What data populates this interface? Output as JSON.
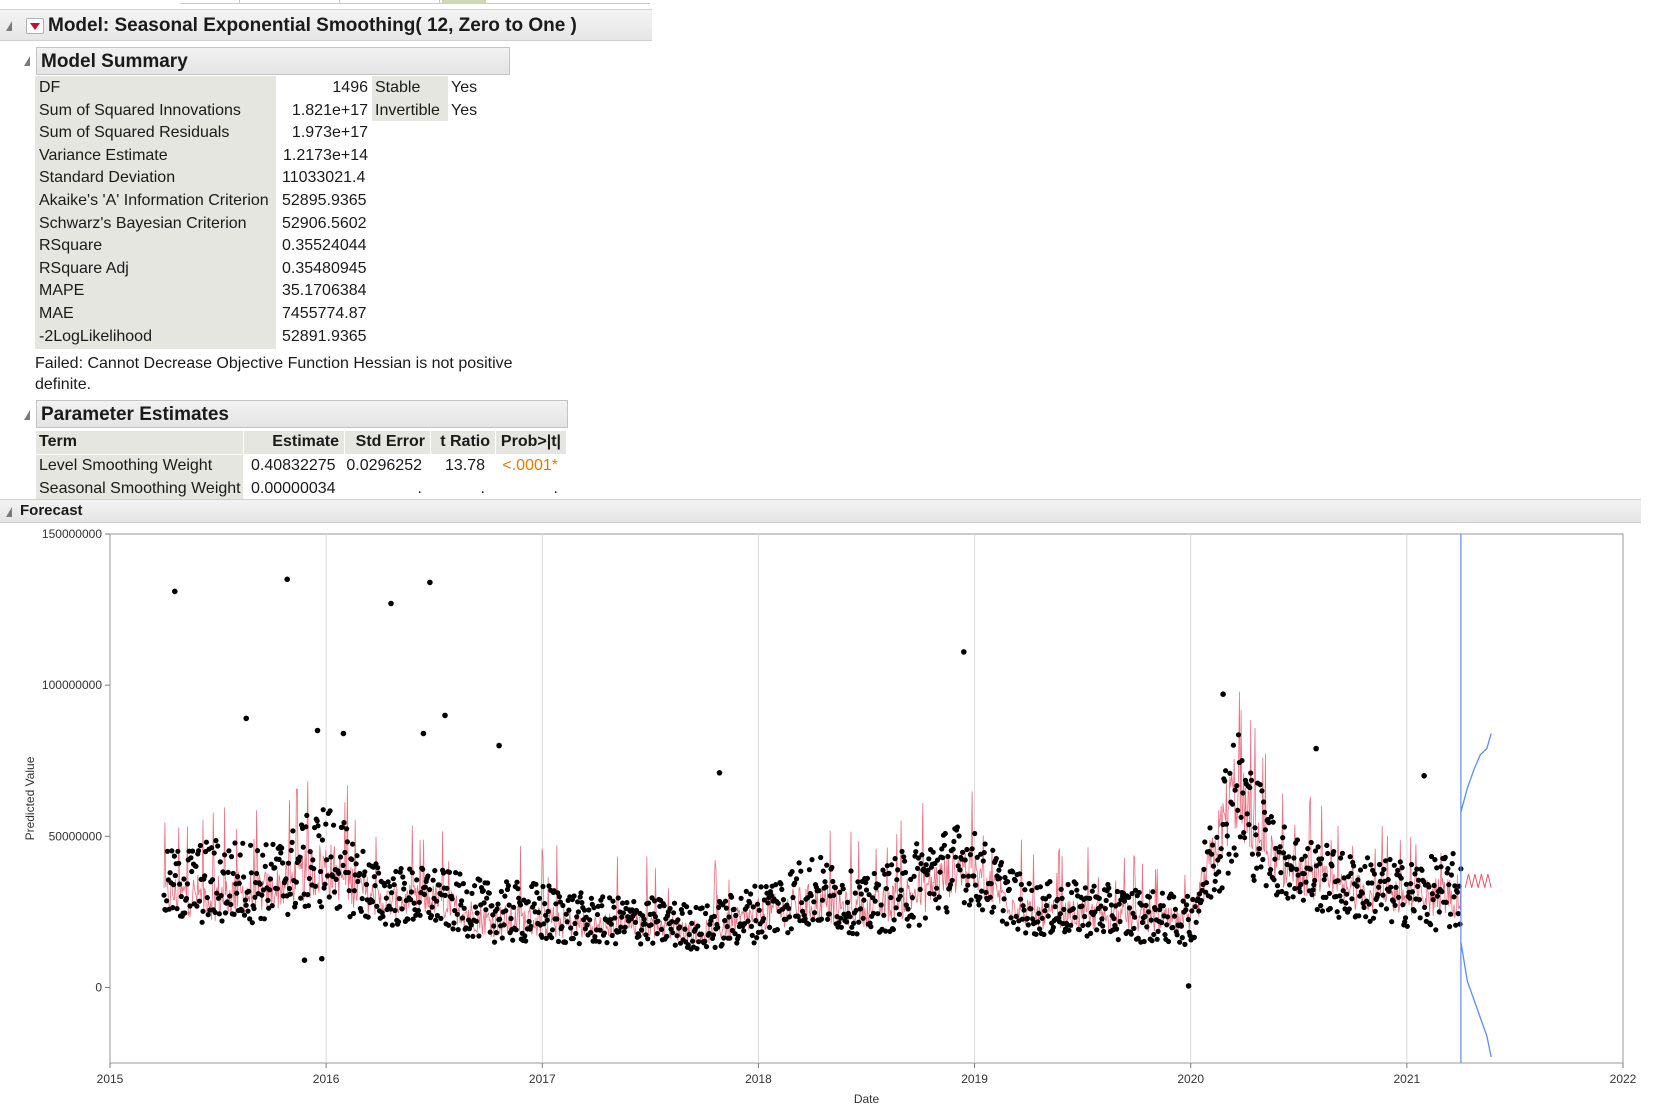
{
  "model": {
    "title": "Model: Seasonal Exponential Smoothing( 12, Zero to One )"
  },
  "model_summary": {
    "title": "Model Summary",
    "rows": [
      {
        "label": "DF",
        "value": "1496"
      },
      {
        "label": "Sum of Squared Innovations",
        "value": "1.821e+17"
      },
      {
        "label": "Sum of Squared Residuals",
        "value": "1.973e+17"
      },
      {
        "label": "Variance Estimate",
        "value": "1.2173e+14"
      },
      {
        "label": "Standard Deviation",
        "value": "11033021.4"
      },
      {
        "label": "Akaike's 'A' Information Criterion",
        "value": "52895.9365"
      },
      {
        "label": "Schwarz's Bayesian Criterion",
        "value": "52906.5602"
      },
      {
        "label": "RSquare",
        "value": "0.35524044"
      },
      {
        "label": "RSquare Adj",
        "value": "0.35480945"
      },
      {
        "label": "MAPE",
        "value": "35.1706384"
      },
      {
        "label": "MAE",
        "value": "7455774.87"
      },
      {
        "label": "-2LogLikelihood",
        "value": "52891.9365"
      }
    ],
    "side": [
      {
        "label": "Stable",
        "value": "Yes"
      },
      {
        "label": "Invertible",
        "value": "Yes"
      }
    ],
    "message": "Failed: Cannot Decrease Objective Function Hessian is not positive definite."
  },
  "parameter_estimates": {
    "title": "Parameter Estimates",
    "columns": [
      "Term",
      "Estimate",
      "Std Error",
      "t Ratio",
      "Prob>|t|"
    ],
    "rows": [
      {
        "term": "Level Smoothing Weight",
        "estimate": "0.40832275",
        "std_error": "0.0296252",
        "t_ratio": "13.78",
        "prob": "<.0001*"
      },
      {
        "term": "Seasonal Smoothing Weight",
        "estimate": "0.00000034",
        "std_error": ".",
        "t_ratio": ".",
        "prob": "."
      }
    ]
  },
  "forecast": {
    "title": "Forecast"
  },
  "colors": {
    "points": "#000000",
    "prediction_line": "#e8566a",
    "forecast_line": "#5b8def",
    "grid": "#d9d9d9",
    "accent_prob": "#e07b00"
  },
  "chart_data": {
    "type": "scatter",
    "xlabel": "Date",
    "ylabel": "Predicted Value",
    "xlim": [
      2015,
      2022
    ],
    "ylim": [
      -25000000,
      150000000
    ],
    "x_ticks": [
      "2015",
      "2016",
      "2017",
      "2018",
      "2019",
      "2020",
      "2021",
      "2022"
    ],
    "y_ticks": [
      "0",
      "50000000",
      "100000000",
      "150000000"
    ],
    "grid": "vertical",
    "forecast_origin": 2021.25,
    "observed_envelope": [
      {
        "x": 2015.25,
        "low": 22000000,
        "mid": 31000000,
        "high": 45000000
      },
      {
        "x": 2015.5,
        "low": 20000000,
        "mid": 30000000,
        "high": 50000000
      },
      {
        "x": 2015.75,
        "low": 22000000,
        "mid": 32000000,
        "high": 48000000
      },
      {
        "x": 2016.0,
        "low": 26000000,
        "mid": 40000000,
        "high": 62000000
      },
      {
        "x": 2016.25,
        "low": 20000000,
        "mid": 28000000,
        "high": 40000000
      },
      {
        "x": 2016.5,
        "low": 20000000,
        "mid": 29000000,
        "high": 40000000
      },
      {
        "x": 2016.75,
        "low": 15000000,
        "mid": 22000000,
        "high": 35000000
      },
      {
        "x": 2017.0,
        "low": 14000000,
        "mid": 22000000,
        "high": 35000000
      },
      {
        "x": 2017.25,
        "low": 14000000,
        "mid": 20000000,
        "high": 30000000
      },
      {
        "x": 2017.5,
        "low": 14000000,
        "mid": 21000000,
        "high": 30000000
      },
      {
        "x": 2017.75,
        "low": 12000000,
        "mid": 18000000,
        "high": 27000000
      },
      {
        "x": 2018.0,
        "low": 15000000,
        "mid": 24000000,
        "high": 35000000
      },
      {
        "x": 2018.25,
        "low": 20000000,
        "mid": 28000000,
        "high": 45000000
      },
      {
        "x": 2018.5,
        "low": 17000000,
        "mid": 25000000,
        "high": 36000000
      },
      {
        "x": 2018.75,
        "low": 20000000,
        "mid": 32000000,
        "high": 50000000
      },
      {
        "x": 2018.95,
        "low": 28000000,
        "mid": 40000000,
        "high": 55000000
      },
      {
        "x": 2019.25,
        "low": 17000000,
        "mid": 24000000,
        "high": 35000000
      },
      {
        "x": 2019.5,
        "low": 17000000,
        "mid": 24000000,
        "high": 35000000
      },
      {
        "x": 2019.75,
        "low": 15000000,
        "mid": 23000000,
        "high": 33000000
      },
      {
        "x": 2020.0,
        "low": 14000000,
        "mid": 21000000,
        "high": 30000000
      },
      {
        "x": 2020.2,
        "low": 40000000,
        "mid": 65000000,
        "high": 90000000
      },
      {
        "x": 2020.4,
        "low": 30000000,
        "mid": 40000000,
        "high": 55000000
      },
      {
        "x": 2020.7,
        "low": 22000000,
        "mid": 32000000,
        "high": 45000000
      },
      {
        "x": 2021.0,
        "low": 20000000,
        "mid": 30000000,
        "high": 42000000
      },
      {
        "x": 2021.25,
        "low": 18000000,
        "mid": 30000000,
        "high": 45000000
      }
    ],
    "outliers": [
      {
        "x": 2015.3,
        "y": 131000000
      },
      {
        "x": 2015.82,
        "y": 135000000
      },
      {
        "x": 2016.3,
        "y": 127000000
      },
      {
        "x": 2016.48,
        "y": 134000000
      },
      {
        "x": 2016.55,
        "y": 90000000
      },
      {
        "x": 2015.63,
        "y": 89000000
      },
      {
        "x": 2015.96,
        "y": 85000000
      },
      {
        "x": 2016.08,
        "y": 84000000
      },
      {
        "x": 2016.45,
        "y": 84000000
      },
      {
        "x": 2016.8,
        "y": 80000000
      },
      {
        "x": 2018.95,
        "y": 111000000
      },
      {
        "x": 2020.15,
        "y": 97000000
      },
      {
        "x": 2020.58,
        "y": 79000000
      },
      {
        "x": 2017.82,
        "y": 71000000
      },
      {
        "x": 2021.08,
        "y": 70000000
      },
      {
        "x": 2019.99,
        "y": 500000
      },
      {
        "x": 2015.9,
        "y": 9000000
      },
      {
        "x": 2015.98,
        "y": 9500000
      }
    ],
    "forecast_upper": [
      {
        "x": 2021.25,
        "y": 58000000
      },
      {
        "x": 2021.28,
        "y": 66000000
      },
      {
        "x": 2021.31,
        "y": 72000000
      },
      {
        "x": 2021.34,
        "y": 77000000
      },
      {
        "x": 2021.37,
        "y": 79000000
      },
      {
        "x": 2021.39,
        "y": 84000000
      }
    ],
    "forecast_lower": [
      {
        "x": 2021.25,
        "y": 15000000
      },
      {
        "x": 2021.28,
        "y": 2000000
      },
      {
        "x": 2021.31,
        "y": -4000000
      },
      {
        "x": 2021.34,
        "y": -10000000
      },
      {
        "x": 2021.37,
        "y": -16000000
      },
      {
        "x": 2021.39,
        "y": -23000000
      }
    ],
    "forecast_mid": [
      {
        "x": 2021.27,
        "y": 33000000
      },
      {
        "x": 2021.39,
        "y": 35000000
      }
    ]
  }
}
